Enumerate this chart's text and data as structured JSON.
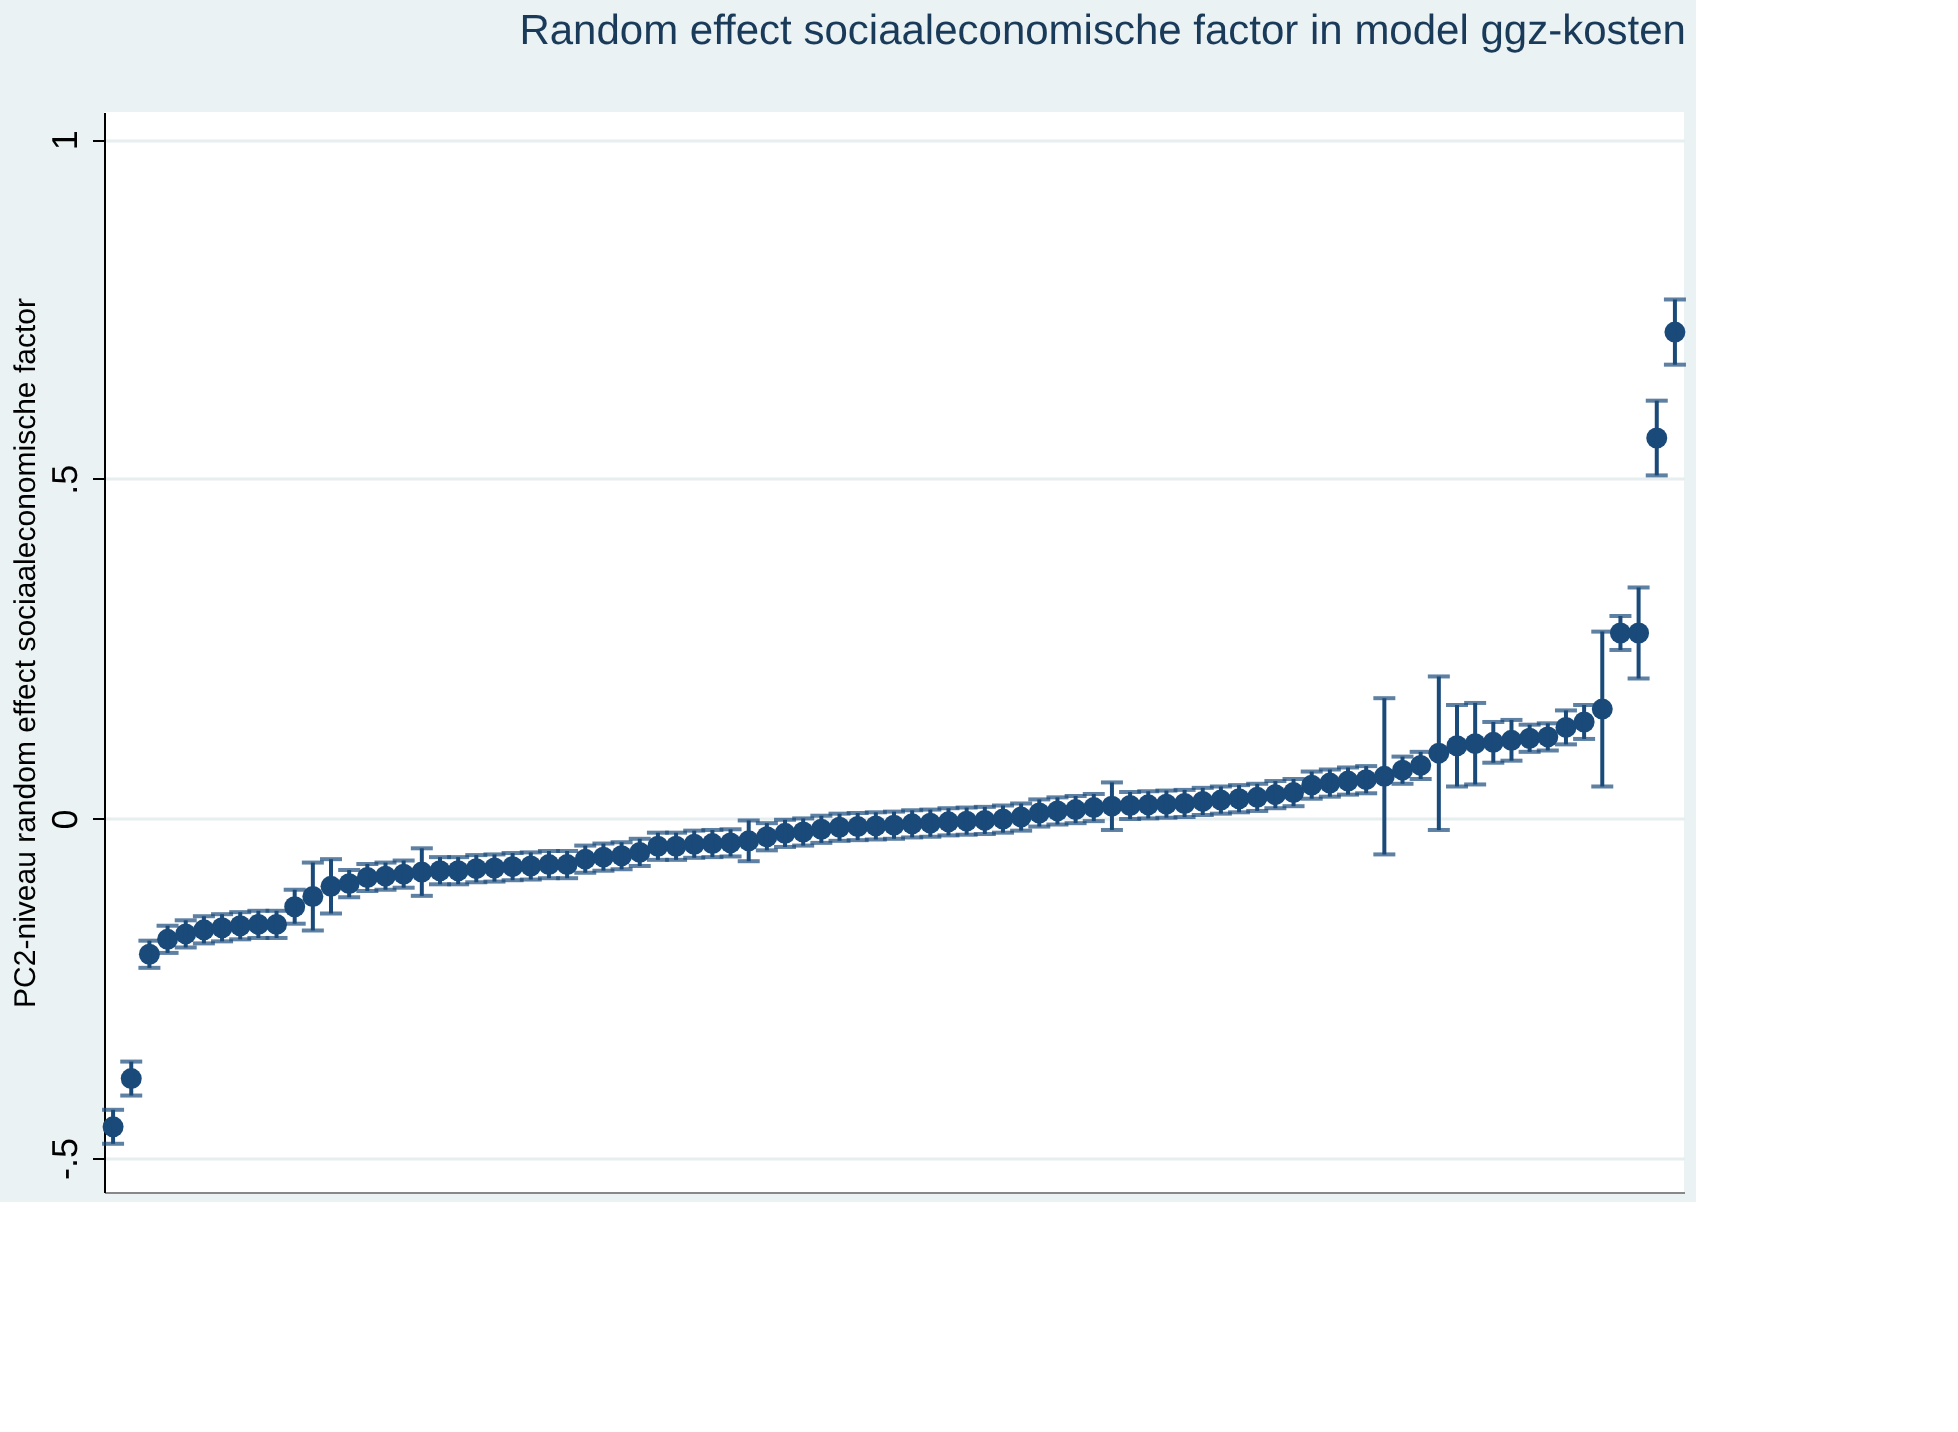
{
  "chart_data": {
    "type": "scatter",
    "title": "Random effect sociaaleconomische factor in model ggz-kosten",
    "ylabel": "PC2-niveau random effect sociaaleconomische factor",
    "categories": [
      null,
      null,
      null,
      null,
      null,
      null,
      null,
      null,
      null,
      null,
      null,
      null,
      null,
      null,
      null,
      null,
      null,
      null,
      null,
      null,
      null,
      null,
      null,
      null,
      null,
      null,
      null,
      null,
      null,
      null,
      null,
      null,
      null,
      null,
      null,
      null,
      null,
      null,
      null,
      null,
      null,
      null,
      null,
      null,
      null,
      null,
      null,
      null,
      null,
      null,
      null,
      null,
      null,
      null,
      null,
      null,
      null,
      null,
      null,
      null,
      null,
      null,
      null,
      null,
      null,
      null,
      null,
      null,
      null,
      null,
      null,
      null,
      null,
      null,
      null,
      null,
      null,
      null,
      null,
      null,
      null,
      null,
      null,
      null,
      null,
      null,
      null
    ],
    "series": [
      {
        "color": "#1a4a7a",
        "values": [
          -0.454,
          -0.383,
          -0.2,
          -0.178,
          -0.17,
          -0.164,
          -0.161,
          -0.158,
          -0.156,
          -0.156,
          -0.13,
          -0.115,
          -0.1,
          -0.096,
          -0.087,
          -0.085,
          -0.082,
          -0.079,
          -0.077,
          -0.077,
          -0.074,
          -0.073,
          -0.071,
          -0.07,
          -0.068,
          -0.068,
          -0.06,
          -0.057,
          -0.055,
          -0.05,
          -0.041,
          -0.041,
          -0.038,
          -0.037,
          -0.036,
          -0.033,
          -0.027,
          -0.022,
          -0.02,
          -0.016,
          -0.013,
          -0.012,
          -0.011,
          -0.01,
          -0.008,
          -0.007,
          -0.005,
          -0.004,
          -0.003,
          -0.001,
          0.002,
          0.008,
          0.011,
          0.013,
          0.016,
          0.018,
          0.019,
          0.02,
          0.021,
          0.022,
          0.025,
          0.027,
          0.029,
          0.031,
          0.035,
          0.038,
          0.049,
          0.052,
          0.055,
          0.057,
          0.062,
          0.071,
          0.078,
          0.096,
          0.107,
          0.11,
          0.112,
          0.115,
          0.118,
          0.12,
          0.134,
          0.142,
          0.161,
          0.273,
          0.273,
          0.56,
          0.716
        ],
        "errors": [
          0.025,
          0.025,
          0.02,
          0.02,
          0.02,
          0.02,
          0.02,
          0.02,
          0.02,
          0.02,
          0.025,
          0.05,
          0.04,
          0.02,
          0.02,
          0.02,
          0.02,
          0.035,
          0.02,
          0.02,
          0.02,
          0.02,
          0.02,
          0.02,
          0.02,
          0.02,
          0.02,
          0.02,
          0.02,
          0.02,
          0.02,
          0.02,
          0.02,
          0.02,
          0.02,
          0.03,
          0.02,
          0.02,
          0.02,
          0.02,
          0.02,
          0.02,
          0.02,
          0.02,
          0.02,
          0.02,
          0.02,
          0.02,
          0.02,
          0.02,
          0.02,
          0.02,
          0.02,
          0.02,
          0.02,
          0.035,
          0.02,
          0.02,
          0.02,
          0.02,
          0.02,
          0.02,
          0.02,
          0.02,
          0.02,
          0.02,
          0.02,
          0.02,
          0.02,
          0.02,
          0.115,
          0.02,
          0.02,
          0.113,
          0.06,
          0.06,
          0.03,
          0.03,
          0.02,
          0.02,
          0.025,
          0.025,
          0.114,
          0.025,
          0.067,
          0.055,
          0.048
        ]
      }
    ],
    "ylim": [
      -0.55,
      1.04
    ],
    "yticks": [
      {
        "value": -0.5,
        "label": "-.5"
      },
      0,
      {
        "value": 0.5,
        "label": ".5"
      },
      1
    ],
    "grid": "y",
    "tick_labels": "y",
    "marker": "circle",
    "legend": false
  }
}
